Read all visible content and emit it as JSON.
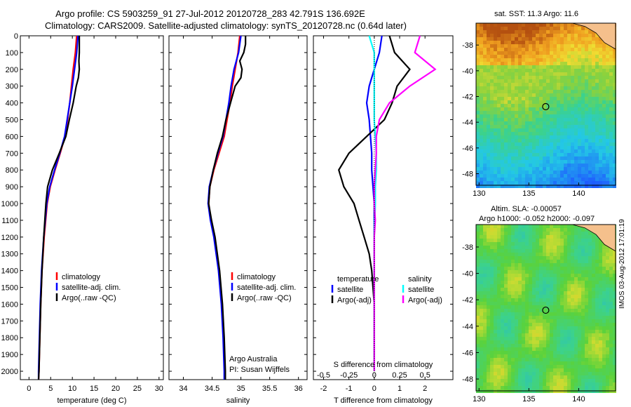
{
  "titles": {
    "line1": "Argo profile: CS 5903259_91 27-Jul-2012 20120728_283 42.791S 136.692E",
    "line2": "Climatology: CARS2009. Satellite-adjusted climatology: synTS_20120728.nc (0.64d later)"
  },
  "colors": {
    "climatology": "#ff0000",
    "satellite": "#0000ff",
    "argo": "#000000",
    "sat_s": "#00ffff",
    "argo_adj_s": "#ff00ff"
  },
  "depth_ticks": [
    0,
    100,
    200,
    300,
    400,
    500,
    600,
    700,
    800,
    900,
    1000,
    1100,
    1200,
    1300,
    1400,
    1500,
    1600,
    1700,
    1800,
    1900,
    2000
  ],
  "chart_data": [
    {
      "type": "line",
      "xlabel": "temperature (deg C)",
      "xticks": [
        0,
        5,
        10,
        15,
        20,
        25,
        30
      ],
      "xlim": [
        -2,
        31
      ],
      "ylim": [
        0,
        2050
      ],
      "legend": [
        "climatology",
        "satellite-adj. clim.",
        "Argo(..raw -QC)"
      ],
      "series": [
        {
          "name": "climatology",
          "depth": [
            0,
            100,
            200,
            300,
            400,
            500,
            600,
            700,
            800,
            900,
            1000,
            1200,
            1400,
            1600,
            1800,
            2000,
            2050
          ],
          "values": [
            11.0,
            10.7,
            10.2,
            9.8,
            9.4,
            8.9,
            8.3,
            7.2,
            6.0,
            4.9,
            4.2,
            3.5,
            3.0,
            2.7,
            2.5,
            2.3,
            2.2
          ]
        },
        {
          "name": "satellite-adj. clim.",
          "depth": [
            0,
            100,
            200,
            300,
            400,
            500,
            600,
            700,
            800,
            900,
            1000,
            1200,
            1400,
            1600,
            1800,
            2000,
            2050
          ],
          "values": [
            11.3,
            11.0,
            10.5,
            10.0,
            9.4,
            8.8,
            8.2,
            7.1,
            5.9,
            4.8,
            4.1,
            3.4,
            2.9,
            2.6,
            2.4,
            2.2,
            2.2
          ]
        },
        {
          "name": "Argo(..raw -QC)",
          "depth": [
            0,
            100,
            150,
            200,
            250,
            300,
            400,
            500,
            600,
            700,
            800,
            900,
            1000,
            1200,
            1400,
            1600,
            1800,
            2000,
            2050
          ],
          "values": [
            11.6,
            11.6,
            11.5,
            11.6,
            11.4,
            10.9,
            10.2,
            9.3,
            8.5,
            7.0,
            5.4,
            4.3,
            3.9,
            3.4,
            3.0,
            2.7,
            2.5,
            2.3,
            2.2
          ]
        }
      ]
    },
    {
      "type": "line",
      "xlabel": "salinity",
      "xticks": [
        34,
        34.5,
        35,
        35.5,
        36
      ],
      "xlim": [
        33.75,
        36.15
      ],
      "ylim": [
        0,
        2050
      ],
      "legend": [
        "climatology",
        "satellite-adj. clim.",
        "Argo(..raw -QC)"
      ],
      "annotation": [
        "Argo Australia",
        "PI: Susan Wijffels"
      ],
      "series": [
        {
          "name": "climatology",
          "depth": [
            0,
            100,
            200,
            300,
            400,
            500,
            600,
            700,
            800,
            900,
            1000,
            1100,
            1200,
            1400,
            1600,
            1800,
            2000,
            2050
          ],
          "values": [
            34.98,
            34.95,
            34.9,
            34.85,
            34.81,
            34.76,
            34.71,
            34.62,
            34.53,
            34.46,
            34.44,
            34.48,
            34.54,
            34.62,
            34.67,
            34.7,
            34.72,
            34.72
          ]
        },
        {
          "name": "satellite-adj. clim.",
          "depth": [
            0,
            100,
            200,
            300,
            400,
            500,
            600,
            700,
            800,
            900,
            1000,
            1100,
            1200,
            1400,
            1600,
            1800,
            2000,
            2050
          ],
          "values": [
            35.0,
            34.96,
            34.88,
            34.83,
            34.79,
            34.74,
            34.69,
            34.6,
            34.52,
            34.45,
            34.43,
            34.47,
            34.53,
            34.61,
            34.66,
            34.69,
            34.71,
            34.71
          ]
        },
        {
          "name": "Argo(..raw -QC)",
          "depth": [
            0,
            50,
            100,
            150,
            200,
            250,
            300,
            400,
            500,
            600,
            700,
            800,
            900,
            1000,
            1100,
            1200,
            1400,
            1600,
            1800,
            2000,
            2050
          ],
          "values": [
            35.08,
            35.08,
            35.05,
            34.98,
            35.02,
            35.0,
            34.9,
            34.82,
            34.74,
            34.68,
            34.59,
            34.52,
            34.46,
            34.44,
            34.49,
            34.55,
            34.63,
            34.68,
            34.71,
            34.73,
            34.73
          ]
        }
      ]
    },
    {
      "type": "line",
      "xlabel": "T difference from climatology",
      "xticks": [
        -2,
        -1,
        0,
        1,
        2
      ],
      "xlim": [
        -2.4,
        3.1
      ],
      "top_label": "S difference from climatology",
      "top_ticks": [
        "-0.5",
        "-0.25",
        "0",
        "0.25",
        "0.5"
      ],
      "ylim": [
        0,
        2050
      ],
      "legend": [
        "temperature",
        "satellite",
        "Argo(-adj)",
        "salinity",
        "satellite",
        "Argo(-adj)"
      ],
      "series": [
        {
          "name": "temperature satellite",
          "depth": [
            0,
            100,
            200,
            300,
            400,
            500,
            600,
            700,
            800,
            900,
            1000,
            1200,
            1500,
            2000
          ],
          "values": [
            0.3,
            0.2,
            0.0,
            -0.2,
            -0.3,
            -0.2,
            -0.15,
            -0.1,
            -0.1,
            -0.05,
            0.0,
            0.0,
            0.0,
            0.0
          ]
        },
        {
          "name": "temperature Argo(-adj)",
          "depth": [
            0,
            100,
            200,
            300,
            400,
            500,
            600,
            700,
            800,
            900,
            1000,
            1100,
            1200,
            1300,
            1400,
            1500,
            1600,
            1800,
            2000
          ],
          "values": [
            0.6,
            0.8,
            1.4,
            0.9,
            0.7,
            0.4,
            -0.3,
            -1.0,
            -1.4,
            -1.2,
            -0.8,
            -0.6,
            -0.4,
            -0.2,
            -0.1,
            -0.05,
            0.0,
            0.0,
            0.0
          ]
        },
        {
          "name": "salinity satellite",
          "depth": [
            0,
            100,
            200,
            300,
            400,
            500,
            600,
            700,
            800,
            900,
            1000,
            1200,
            1500,
            2000
          ],
          "values": [
            -0.05,
            0.0,
            0.0,
            0.0,
            0.0,
            0.0,
            0.01,
            0.02,
            0.02,
            0.01,
            0.01,
            0.0,
            0.0,
            0.0
          ]
        },
        {
          "name": "salinity Argo(-adj)",
          "depth": [
            0,
            100,
            200,
            300,
            400,
            500,
            600,
            700,
            800,
            900,
            1000,
            1100,
            1200,
            1500,
            2000
          ],
          "values": [
            0.45,
            0.4,
            0.6,
            0.35,
            0.15,
            0.05,
            0.02,
            0.02,
            0.01,
            0.0,
            0.0,
            0.01,
            0.0,
            0.0,
            0.0
          ]
        }
      ]
    },
    {
      "type": "heatmap",
      "title": "sat. SST: 11.3  Argo: 11.6",
      "xticks": [
        130,
        135,
        140
      ],
      "yticks": [
        -38,
        -40,
        -42,
        -44,
        -46,
        -48
      ],
      "xlim": [
        129.7,
        143.7
      ],
      "ylim": [
        -48.9,
        -36.3
      ],
      "marker": {
        "lon": 136.69,
        "lat": -42.79
      }
    },
    {
      "type": "heatmap",
      "title": "Altim. SLA: -0.00057",
      "subtitle": "Argo h1000: -0.052  h2000: -0.097",
      "xticks": [
        130,
        135,
        140
      ],
      "yticks": [
        -38,
        -40,
        -42,
        -44,
        -46,
        -48
      ],
      "xlim": [
        129.7,
        143.7
      ],
      "ylim": [
        -48.9,
        -36.3
      ],
      "marker": {
        "lon": 136.69,
        "lat": -42.79
      }
    }
  ],
  "stamp": "IMOS 03-Aug-2012 17:01:19"
}
